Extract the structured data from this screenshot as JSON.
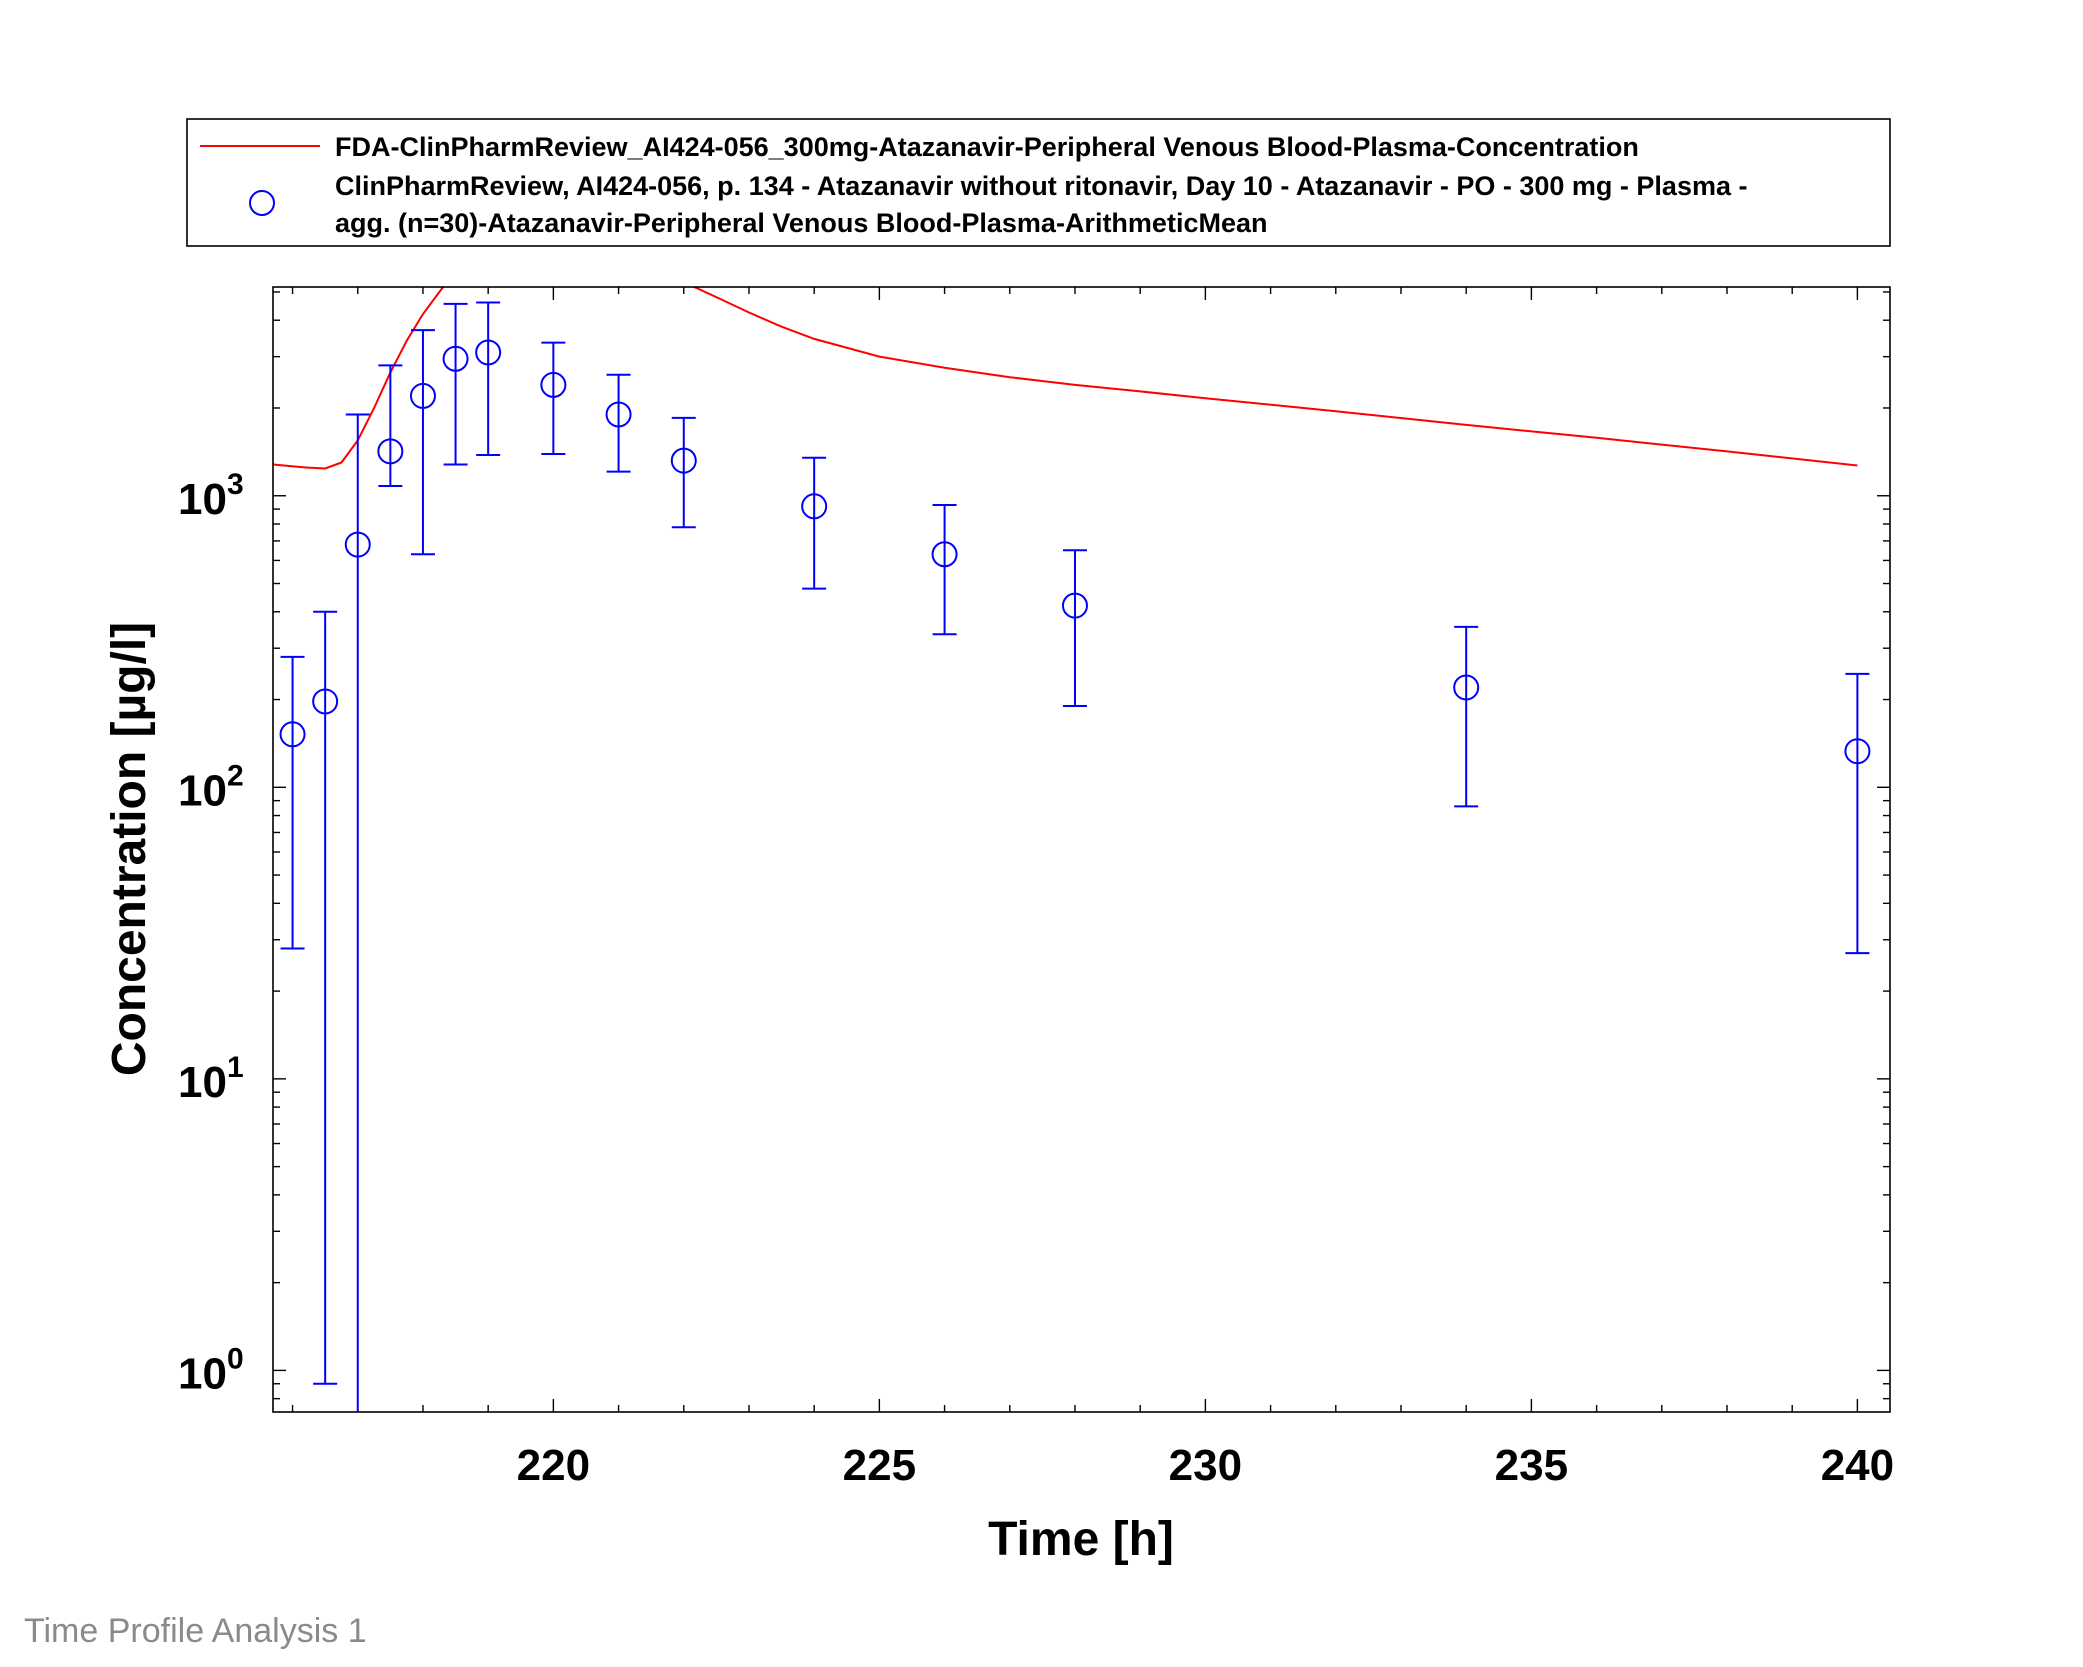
{
  "footer": "Time Profile Analysis 1",
  "chart_data": {
    "type": "line",
    "xlabel": "Time [h]",
    "ylabel": "Concentration [µg/l]",
    "xlim": [
      215.7,
      240.5
    ],
    "ylim": [
      0.72,
      5200
    ],
    "yscale": "log",
    "grid": false,
    "legend_position": "top",
    "x_ticks": [
      {
        "value": 220,
        "label": "220"
      },
      {
        "value": 225,
        "label": "225"
      },
      {
        "value": 230,
        "label": "230"
      },
      {
        "value": 235,
        "label": "235"
      },
      {
        "value": 240,
        "label": "240"
      }
    ],
    "y_ticks": [
      {
        "value": 1,
        "base": "10",
        "exp": "0"
      },
      {
        "value": 10,
        "base": "10",
        "exp": "1"
      },
      {
        "value": 100,
        "base": "10",
        "exp": "2"
      },
      {
        "value": 1000,
        "base": "10",
        "exp": "3"
      }
    ],
    "series": [
      {
        "name": "FDA-ClinPharmReview_AI424-056_300mg-Atazanavir-Peripheral Venous Blood-Plasma-Concentration",
        "kind": "line",
        "color": "#ff0000",
        "x": [
          215.7,
          216.2,
          216.5,
          216.75,
          217.0,
          217.25,
          217.5,
          217.75,
          218.0,
          218.25,
          218.5,
          218.75,
          219.0,
          219.5,
          220.0,
          220.5,
          221.0,
          221.5,
          222.0,
          222.5,
          223.0,
          223.5,
          224.0,
          225.0,
          226.0,
          227.0,
          228.0,
          229.0,
          230.0,
          232.0,
          234.0,
          236.0,
          238.0,
          240.0
        ],
        "y": [
          1280,
          1250,
          1240,
          1300,
          1550,
          2000,
          2650,
          3400,
          4200,
          5000,
          5900,
          6600,
          7100,
          7500,
          7500,
          7200,
          6800,
          6200,
          5400,
          4800,
          4250,
          3800,
          3450,
          3000,
          2750,
          2550,
          2400,
          2280,
          2160,
          1950,
          1750,
          1580,
          1420,
          1270
        ]
      },
      {
        "name": "ClinPharmReview, AI424-056, p. 134 - Atazanavir without ritonavir, Day 10 - Atazanavir - PO - 300 mg - Plasma - agg. (n=30)-Atazanavir-Peripheral Venous Blood-Plasma-ArithmeticMean",
        "legend_lines": [
          "ClinPharmReview, AI424-056, p. 134 - Atazanavir without ritonavir, Day 10 - Atazanavir - PO - 300 mg - Plasma -",
          "agg. (n=30)-Atazanavir-Peripheral Venous Blood-Plasma-ArithmeticMean"
        ],
        "kind": "scatter-errorbar",
        "color": "#0000ff",
        "x": [
          216.0,
          216.5,
          217.0,
          217.5,
          218.0,
          218.5,
          219.0,
          220.0,
          221.0,
          222.0,
          224.0,
          226.0,
          228.0,
          234.0,
          240.0
        ],
        "y": [
          152,
          197,
          680,
          1420,
          2200,
          2950,
          3100,
          2400,
          1900,
          1320,
          920,
          630,
          420,
          220,
          133
        ],
        "y_low": [
          28,
          0.9,
          0,
          1080,
          630,
          1280,
          1380,
          1390,
          1210,
          780,
          480,
          335,
          190,
          86,
          27
        ],
        "y_high": [
          280,
          400,
          1900,
          2800,
          3700,
          4550,
          4600,
          3350,
          2600,
          1850,
          1350,
          930,
          650,
          355,
          245
        ]
      }
    ]
  }
}
